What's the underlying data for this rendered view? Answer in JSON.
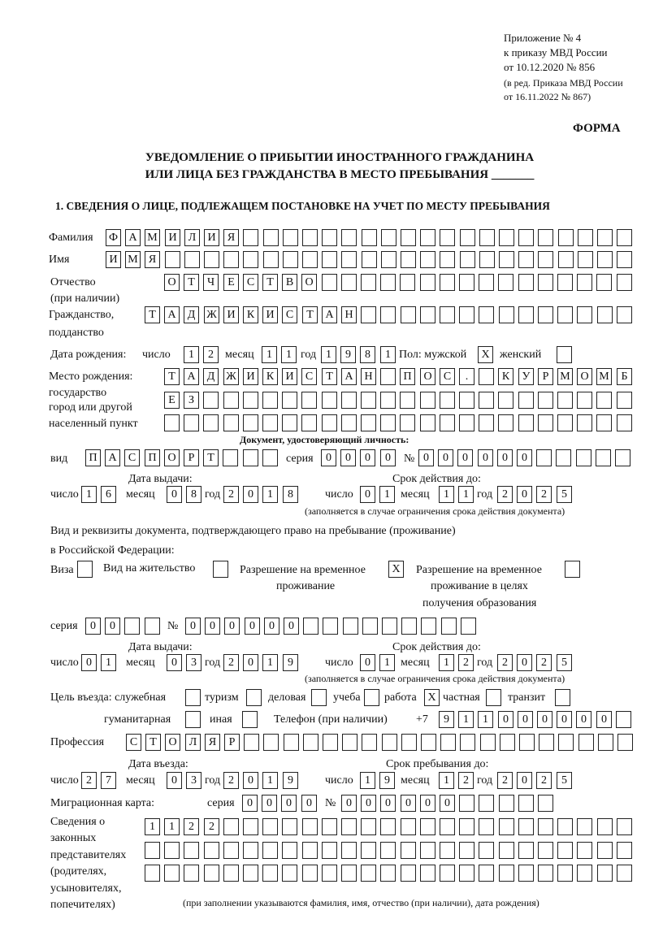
{
  "header": {
    "annex": "Приложение № 4",
    "order": "к приказу МВД России",
    "order_date": "от 10.12.2020 № 856",
    "edition1": "(в ред. Приказа МВД России",
    "edition2": "от 16.11.2022 № 867)",
    "form": "ФОРМА",
    "title1": "УВЕДОМЛЕНИЕ О ПРИБЫТИИ ИНОСТРАННОГО ГРАЖДАНИНА",
    "title2": "ИЛИ ЛИЦА БЕЗ ГРАЖДАНСТВА В МЕСТО ПРЕБЫВАНИЯ _______",
    "section1": "1. СВЕДЕНИЯ О ЛИЦЕ, ПОДЛЕЖАЩЕМ ПОСТАНОВКЕ НА УЧЕТ ПО МЕСТУ ПРЕБЫВАНИЯ"
  },
  "labels": {
    "surname": "Фамилия",
    "name": "Имя",
    "patronymic": "Отчество",
    "patronymic2": "(при наличии)",
    "citizenship": "Гражданство,",
    "citizenship2": "подданство",
    "birth_date": "Дата рождения:",
    "day": "число",
    "month": "месяц",
    "year": "год",
    "sex": "Пол: мужской",
    "female": "женский",
    "birth_place": "Место рождения:",
    "state": "государство",
    "city": "город или другой",
    "locality": "населенный пункт",
    "id_doc": "Документ, удостоверяющий личность:",
    "kind": "вид",
    "series": "серия",
    "number": "№",
    "issue_date": "Дата выдачи:",
    "valid_until": "Срок действия до:",
    "validity_note": "(заполняется в случае ограничения срока действия документа)",
    "stay_doc1": "Вид и реквизиты документа, подтверждающего право на пребывание (проживание)",
    "stay_doc2": "в Российской Федерации:",
    "visa": "Виза",
    "residence": "Вид на жительство",
    "trp1": "Разрешение на временное",
    "trp2": "проживание",
    "trpe1": "Разрешение на временное",
    "trpe2": "проживание в целях",
    "trpe3": "получения образования",
    "purpose": "Цель въезда: служебная",
    "tourism": "туризм",
    "business": "деловая",
    "study": "учеба",
    "work": "работа",
    "private": "частная",
    "transit": "транзит",
    "humanitarian": "гуманитарная",
    "other": "иная",
    "phone": "Телефон (при наличии)",
    "phone_prefix": "+7",
    "profession": "Профессия",
    "entry_date": "Дата въезда:",
    "stay_until": "Срок пребывания до:",
    "migration_card": "Миграционная карта:",
    "rep1": "Сведения о",
    "rep2": "законных",
    "rep3": "представителях",
    "rep4": "(родителях,",
    "rep5": "усыновителях,",
    "rep6": "попечителях)",
    "rep_note": "(при заполнении указываются фамилия, имя, отчество (при наличии), дата рождения)"
  },
  "values": {
    "surname": "ФАМИЛИЯ",
    "name": "ИМЯ",
    "patronymic": "ОТЧЕСТВО",
    "citizenship": "ТАДЖИКИСТАН",
    "birth_day": "12",
    "birth_month": "11",
    "birth_year": "1981",
    "sex_male": "X",
    "sex_female": "",
    "birth_place_1": "ТАДЖИКИСТАН ПОС. КУРМОМБ",
    "birth_place_2": "ЕЗ",
    "birth_place_3": "",
    "id_kind": "ПАСПОРТ",
    "id_series": "0000",
    "id_number": "000000",
    "id_issue_day": "16",
    "id_issue_month": "08",
    "id_issue_year": "2018",
    "id_valid_day": "01",
    "id_valid_month": "11",
    "id_valid_year": "2025",
    "visa": "",
    "residence": "",
    "trp": "X",
    "trpe": "",
    "stay_series": "00",
    "stay_number": "000000",
    "stay_issue_day": "01",
    "stay_issue_month": "03",
    "stay_issue_year": "2019",
    "stay_valid_day": "01",
    "stay_valid_month": "12",
    "stay_valid_year": "2025",
    "purpose_official": "",
    "purpose_tourism": "",
    "purpose_business": "",
    "purpose_study": "",
    "purpose_work": "X",
    "purpose_private": "",
    "purpose_transit": "",
    "purpose_humanitarian": "",
    "purpose_other": "",
    "phone": "911000000",
    "profession": "СТОЛЯР",
    "entry_day": "27",
    "entry_month": "03",
    "entry_year": "2019",
    "stay_until_day": "19",
    "stay_until_month": "12",
    "stay_until_year": "2025",
    "mc_series": "0000",
    "mc_number": "000000",
    "rep_1": "1122",
    "rep_2": "",
    "rep_3": ""
  }
}
